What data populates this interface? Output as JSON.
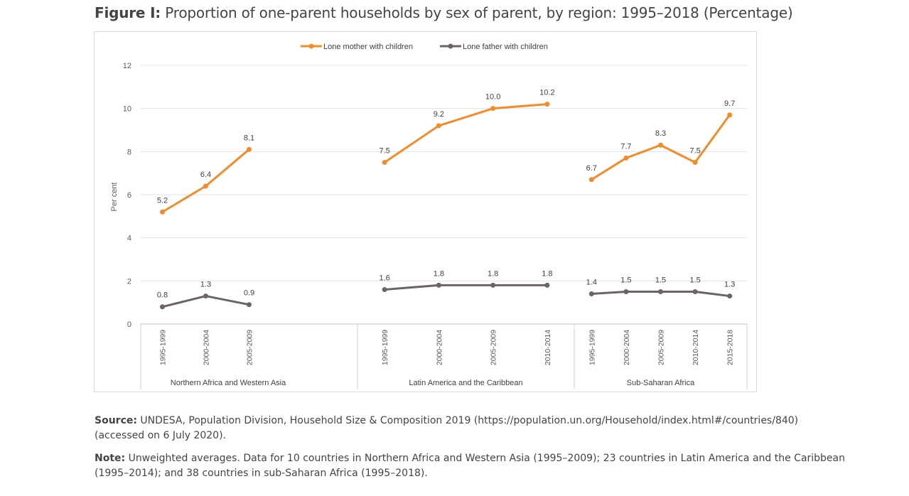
{
  "figure": {
    "label": "Figure I:",
    "title": "Proportion of one-parent households by sex of parent, by region: 1995–2018 (Percentage)"
  },
  "source": {
    "label": "Source:",
    "text": "UNDESA, Population Division, Household Size & Composition 2019 (https://population.un.org/Household/index.html#/countries/840) (accessed on 6 July 2020)."
  },
  "note": {
    "label": "Note:",
    "text": "Unweighted averages. Data for 10 countries in Northern Africa and Western Asia (1995–2009); 23 countries in Latin America and the Caribbean (1995–2014); and 38 countries in sub-Saharan Africa (1995–2018)."
  },
  "chart_data": {
    "type": "line",
    "ylabel": "Per cent",
    "xlabel": "",
    "ylim": [
      0,
      12
    ],
    "yticks": [
      0,
      2,
      4,
      6,
      8,
      10,
      12
    ],
    "grid": true,
    "legend_position": "top-center",
    "groups": [
      {
        "name": "Northern Africa and Western Asia",
        "periods": [
          "1995-1999",
          "2000-2004",
          "2005-2009"
        ]
      },
      {
        "name": "Latin America and the Caribbean",
        "periods": [
          "1995-1999",
          "2000-2004",
          "2005-2009",
          "2010-2014"
        ]
      },
      {
        "name": "Sub-Saharan Africa",
        "periods": [
          "1995-1999",
          "2000-2004",
          "2005-2009",
          "2010-2014",
          "2015-2018"
        ]
      }
    ],
    "series": [
      {
        "name": "Lone mother with children",
        "color": "#F28C28",
        "values": [
          [
            5.2,
            6.4,
            8.1
          ],
          [
            7.5,
            9.2,
            10.0,
            10.2
          ],
          [
            6.7,
            7.7,
            8.3,
            7.5,
            9.7
          ]
        ]
      },
      {
        "name": "Lone father with children",
        "color": "#6B6365",
        "values": [
          [
            0.8,
            1.3,
            0.9
          ],
          [
            1.6,
            1.8,
            1.8,
            1.8
          ],
          [
            1.4,
            1.5,
            1.5,
            1.5,
            1.3
          ]
        ]
      }
    ]
  }
}
